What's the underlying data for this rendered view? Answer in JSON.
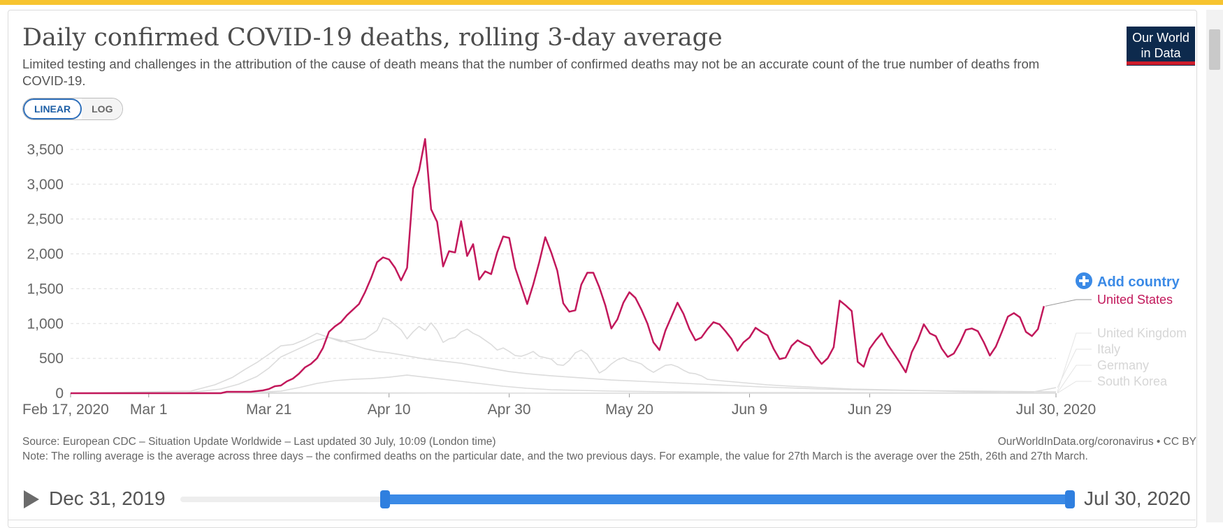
{
  "header": {
    "title": "Daily confirmed COVID-19 deaths, rolling 3-day average",
    "subtitle": "Limited testing and challenges in the attribution of the cause of death means that the number of confirmed deaths may not be an accurate count of the true number of deaths from COVID-19.",
    "logo_line1": "Our World",
    "logo_line2": "in Data"
  },
  "scale_toggle": {
    "linear": "LINEAR",
    "log": "LOG",
    "selected": "LINEAR"
  },
  "colors": {
    "highlight": "#c2185b",
    "context": "#dcdcdc",
    "accent": "#3b8ae6",
    "brand": "#0d2a4d",
    "brand_red": "#cd1b2a"
  },
  "chart_data": {
    "type": "line",
    "title": "Daily confirmed COVID-19 deaths, rolling 3-day average",
    "xlabel": "",
    "ylabel": "",
    "x_range_days": [
      0,
      164
    ],
    "ylim": [
      0,
      3700
    ],
    "y_ticks": [
      0,
      500,
      1000,
      1500,
      2000,
      2500,
      3000,
      3500
    ],
    "y_tick_labels": [
      "0",
      "500",
      "1,000",
      "1,500",
      "2,000",
      "2,500",
      "3,000",
      "3,500"
    ],
    "x_ticks": [
      {
        "day": 0,
        "label": "Feb 17, 2020"
      },
      {
        "day": 13,
        "label": "Mar 1"
      },
      {
        "day": 33,
        "label": "Mar 21"
      },
      {
        "day": 53,
        "label": "Apr 10"
      },
      {
        "day": 73,
        "label": "Apr 30"
      },
      {
        "day": 93,
        "label": "May 20"
      },
      {
        "day": 113,
        "label": "Jun 9"
      },
      {
        "day": 133,
        "label": "Jun 29"
      },
      {
        "day": 164,
        "label": "Jul 30, 2020"
      }
    ],
    "grid": true,
    "legend": "right",
    "series": [
      {
        "name": "United States",
        "highlight": true,
        "points": [
          [
            0,
            0
          ],
          [
            25,
            0
          ],
          [
            26,
            20
          ],
          [
            30,
            20
          ],
          [
            31,
            30
          ],
          [
            32,
            40
          ],
          [
            33,
            60
          ],
          [
            34,
            100
          ],
          [
            35,
            110
          ],
          [
            36,
            170
          ],
          [
            37,
            210
          ],
          [
            38,
            280
          ],
          [
            39,
            370
          ],
          [
            40,
            420
          ],
          [
            41,
            500
          ],
          [
            42,
            650
          ],
          [
            43,
            880
          ],
          [
            44,
            960
          ],
          [
            45,
            1020
          ],
          [
            46,
            1120
          ],
          [
            47,
            1200
          ],
          [
            48,
            1280
          ],
          [
            49,
            1450
          ],
          [
            50,
            1650
          ],
          [
            51,
            1880
          ],
          [
            52,
            1950
          ],
          [
            53,
            1920
          ],
          [
            54,
            1800
          ],
          [
            55,
            1620
          ],
          [
            56,
            1800
          ],
          [
            57,
            2940
          ],
          [
            58,
            3200
          ],
          [
            59,
            3650
          ],
          [
            60,
            2640
          ],
          [
            61,
            2460
          ],
          [
            62,
            1820
          ],
          [
            63,
            2040
          ],
          [
            64,
            2020
          ],
          [
            65,
            2470
          ],
          [
            66,
            1970
          ],
          [
            67,
            2140
          ],
          [
            68,
            1630
          ],
          [
            69,
            1750
          ],
          [
            70,
            1710
          ],
          [
            71,
            2020
          ],
          [
            72,
            2250
          ],
          [
            73,
            2230
          ],
          [
            74,
            1800
          ],
          [
            75,
            1540
          ],
          [
            76,
            1280
          ],
          [
            77,
            1560
          ],
          [
            78,
            1880
          ],
          [
            79,
            2240
          ],
          [
            80,
            2020
          ],
          [
            81,
            1760
          ],
          [
            82,
            1290
          ],
          [
            83,
            1170
          ],
          [
            84,
            1190
          ],
          [
            85,
            1560
          ],
          [
            86,
            1730
          ],
          [
            87,
            1730
          ],
          [
            88,
            1520
          ],
          [
            89,
            1260
          ],
          [
            90,
            930
          ],
          [
            91,
            1060
          ],
          [
            92,
            1300
          ],
          [
            93,
            1450
          ],
          [
            94,
            1370
          ],
          [
            95,
            1200
          ],
          [
            96,
            1000
          ],
          [
            97,
            730
          ],
          [
            98,
            620
          ],
          [
            99,
            900
          ],
          [
            100,
            1100
          ],
          [
            101,
            1300
          ],
          [
            102,
            1140
          ],
          [
            103,
            920
          ],
          [
            104,
            760
          ],
          [
            105,
            800
          ],
          [
            106,
            920
          ],
          [
            107,
            1020
          ],
          [
            108,
            990
          ],
          [
            109,
            890
          ],
          [
            110,
            780
          ],
          [
            111,
            610
          ],
          [
            112,
            730
          ],
          [
            113,
            800
          ],
          [
            114,
            940
          ],
          [
            115,
            880
          ],
          [
            116,
            830
          ],
          [
            117,
            640
          ],
          [
            118,
            490
          ],
          [
            119,
            510
          ],
          [
            120,
            680
          ],
          [
            121,
            760
          ],
          [
            122,
            710
          ],
          [
            123,
            670
          ],
          [
            124,
            530
          ],
          [
            125,
            420
          ],
          [
            126,
            500
          ],
          [
            127,
            660
          ],
          [
            128,
            1330
          ],
          [
            129,
            1260
          ],
          [
            130,
            1180
          ],
          [
            131,
            450
          ],
          [
            132,
            380
          ],
          [
            133,
            640
          ],
          [
            134,
            760
          ],
          [
            135,
            860
          ],
          [
            136,
            700
          ],
          [
            137,
            570
          ],
          [
            138,
            440
          ],
          [
            139,
            300
          ],
          [
            140,
            590
          ],
          [
            141,
            760
          ],
          [
            142,
            990
          ],
          [
            143,
            860
          ],
          [
            144,
            820
          ],
          [
            145,
            640
          ],
          [
            146,
            520
          ],
          [
            147,
            570
          ],
          [
            148,
            720
          ],
          [
            149,
            910
          ],
          [
            150,
            930
          ],
          [
            151,
            890
          ],
          [
            152,
            730
          ],
          [
            153,
            540
          ],
          [
            154,
            670
          ],
          [
            155,
            880
          ],
          [
            156,
            1100
          ],
          [
            157,
            1150
          ],
          [
            158,
            1090
          ],
          [
            159,
            880
          ],
          [
            160,
            820
          ],
          [
            161,
            920
          ],
          [
            162,
            1250
          ]
        ]
      },
      {
        "name": "United Kingdom",
        "highlight": false,
        "points": [
          [
            0,
            0
          ],
          [
            20,
            30
          ],
          [
            24,
            120
          ],
          [
            27,
            230
          ],
          [
            29,
            340
          ],
          [
            31,
            440
          ],
          [
            33,
            560
          ],
          [
            35,
            680
          ],
          [
            37,
            700
          ],
          [
            39,
            770
          ],
          [
            41,
            860
          ],
          [
            43,
            800
          ],
          [
            45,
            760
          ],
          [
            47,
            700
          ],
          [
            49,
            640
          ],
          [
            51,
            600
          ],
          [
            53,
            580
          ],
          [
            55,
            550
          ],
          [
            57,
            520
          ],
          [
            59,
            490
          ],
          [
            61,
            470
          ],
          [
            63,
            450
          ],
          [
            65,
            430
          ],
          [
            67,
            400
          ],
          [
            69,
            370
          ],
          [
            71,
            340
          ],
          [
            73,
            310
          ],
          [
            76,
            280
          ],
          [
            80,
            250
          ],
          [
            85,
            220
          ],
          [
            90,
            190
          ],
          [
            95,
            170
          ],
          [
            100,
            150
          ],
          [
            105,
            130
          ],
          [
            110,
            110
          ],
          [
            115,
            90
          ],
          [
            120,
            75
          ],
          [
            125,
            60
          ],
          [
            130,
            50
          ],
          [
            140,
            40
          ],
          [
            150,
            30
          ],
          [
            164,
            20
          ]
        ]
      },
      {
        "name": "Italy",
        "highlight": false,
        "points": [
          [
            0,
            0
          ],
          [
            19,
            5
          ],
          [
            22,
            30
          ],
          [
            25,
            60
          ],
          [
            28,
            130
          ],
          [
            31,
            240
          ],
          [
            33,
            360
          ],
          [
            35,
            520
          ],
          [
            37,
            600
          ],
          [
            39,
            680
          ],
          [
            41,
            760
          ],
          [
            43,
            800
          ],
          [
            45,
            740
          ],
          [
            47,
            760
          ],
          [
            49,
            780
          ],
          [
            51,
            900
          ],
          [
            52,
            1080
          ],
          [
            53,
            1050
          ],
          [
            55,
            910
          ],
          [
            56,
            780
          ],
          [
            57,
            880
          ],
          [
            58,
            960
          ],
          [
            59,
            900
          ],
          [
            60,
            1010
          ],
          [
            61,
            900
          ],
          [
            62,
            730
          ],
          [
            63,
            780
          ],
          [
            64,
            800
          ],
          [
            65,
            880
          ],
          [
            66,
            920
          ],
          [
            67,
            860
          ],
          [
            68,
            820
          ],
          [
            70,
            700
          ],
          [
            71,
            620
          ],
          [
            72,
            650
          ],
          [
            73,
            600
          ],
          [
            74,
            540
          ],
          [
            75,
            530
          ],
          [
            76,
            560
          ],
          [
            77,
            600
          ],
          [
            78,
            530
          ],
          [
            80,
            490
          ],
          [
            81,
            410
          ],
          [
            82,
            400
          ],
          [
            83,
            470
          ],
          [
            84,
            580
          ],
          [
            85,
            620
          ],
          [
            86,
            560
          ],
          [
            87,
            430
          ],
          [
            88,
            290
          ],
          [
            89,
            340
          ],
          [
            90,
            420
          ],
          [
            91,
            480
          ],
          [
            92,
            510
          ],
          [
            93,
            470
          ],
          [
            94,
            450
          ],
          [
            95,
            420
          ],
          [
            96,
            350
          ],
          [
            97,
            300
          ],
          [
            98,
            350
          ],
          [
            99,
            400
          ],
          [
            100,
            410
          ],
          [
            101,
            380
          ],
          [
            102,
            330
          ],
          [
            103,
            290
          ],
          [
            104,
            280
          ],
          [
            105,
            250
          ],
          [
            106,
            200
          ],
          [
            108,
            180
          ],
          [
            112,
            150
          ],
          [
            116,
            120
          ],
          [
            120,
            100
          ],
          [
            125,
            80
          ],
          [
            130,
            60
          ],
          [
            140,
            40
          ],
          [
            150,
            20
          ],
          [
            155,
            10
          ],
          [
            160,
            15
          ],
          [
            164,
            80
          ]
        ]
      },
      {
        "name": "Germany",
        "highlight": false,
        "points": [
          [
            0,
            0
          ],
          [
            30,
            5
          ],
          [
            35,
            30
          ],
          [
            38,
            80
          ],
          [
            41,
            140
          ],
          [
            44,
            180
          ],
          [
            47,
            200
          ],
          [
            50,
            210
          ],
          [
            53,
            230
          ],
          [
            56,
            260
          ],
          [
            58,
            240
          ],
          [
            60,
            220
          ],
          [
            62,
            200
          ],
          [
            64,
            180
          ],
          [
            66,
            160
          ],
          [
            68,
            140
          ],
          [
            70,
            120
          ],
          [
            72,
            100
          ],
          [
            74,
            85
          ],
          [
            76,
            70
          ],
          [
            78,
            60
          ],
          [
            80,
            50
          ],
          [
            85,
            40
          ],
          [
            90,
            30
          ],
          [
            100,
            20
          ],
          [
            110,
            10
          ],
          [
            120,
            8
          ],
          [
            140,
            5
          ],
          [
            164,
            5
          ]
        ]
      },
      {
        "name": "South Korea",
        "highlight": false,
        "points": [
          [
            0,
            0
          ],
          [
            10,
            2
          ],
          [
            20,
            5
          ],
          [
            30,
            8
          ],
          [
            40,
            6
          ],
          [
            50,
            5
          ],
          [
            60,
            3
          ],
          [
            70,
            2
          ],
          [
            80,
            1
          ],
          [
            100,
            1
          ],
          [
            164,
            1
          ]
        ]
      }
    ],
    "legend_entries": [
      "United States",
      "United Kingdom",
      "Italy",
      "Germany",
      "South Korea"
    ]
  },
  "legend_panel": {
    "add_country": "Add country"
  },
  "footer": {
    "source": "Source: European CDC – Situation Update Worldwide – Last updated 30 July, 10:09 (London time)",
    "url": "OurWorldInData.org/coronavirus • CC BY",
    "note": "Note: The rolling average is the average across three days – the confirmed deaths on the particular date, and the two previous days. For example, the value for 27th March is the average over the 25th, 26th and 27th March."
  },
  "timeline": {
    "start": "Dec 31, 2019",
    "end": "Jul 30, 2020"
  }
}
